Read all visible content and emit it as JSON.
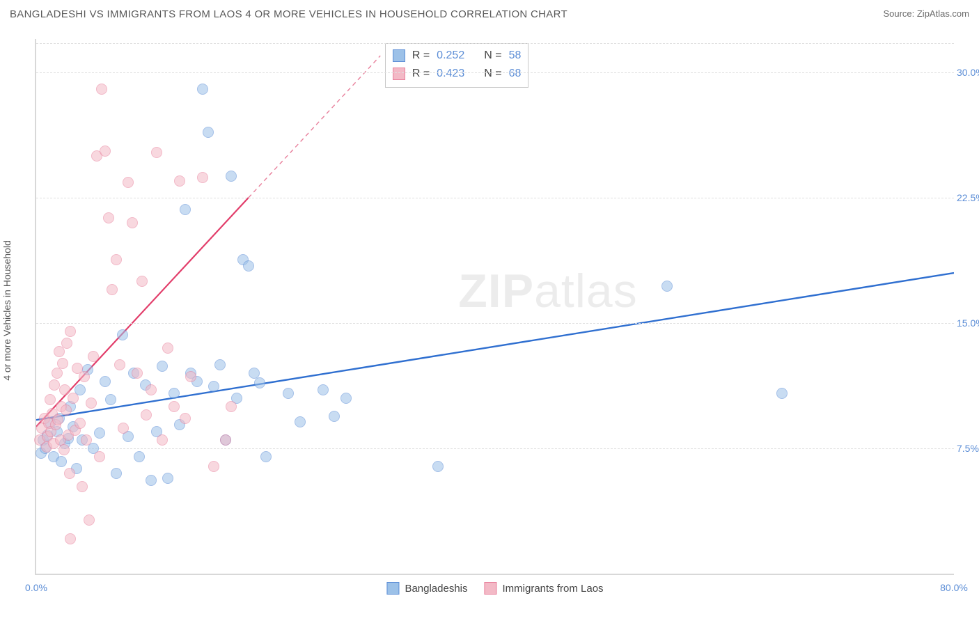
{
  "title": "BANGLADESHI VS IMMIGRANTS FROM LAOS 4 OR MORE VEHICLES IN HOUSEHOLD CORRELATION CHART",
  "source_label": "Source: ",
  "source_name": "ZipAtlas.com",
  "y_axis_label": "4 or more Vehicles in Household",
  "watermark_bold": "ZIP",
  "watermark_rest": "atlas",
  "chart": {
    "type": "scatter",
    "xlim": [
      0,
      80
    ],
    "ylim": [
      0,
      32
    ],
    "x_ticks": [
      0,
      80
    ],
    "x_tick_labels": [
      "0.0%",
      "80.0%"
    ],
    "y_ticks": [
      7.5,
      15.0,
      22.5,
      30.0
    ],
    "y_tick_labels": [
      "7.5%",
      "15.0%",
      "22.5%",
      "30.0%"
    ],
    "background_color": "#ffffff",
    "grid_color": "#e0e0e0",
    "axis_color": "#d8d8d8",
    "tick_label_color": "#5b8dd6",
    "tick_fontsize": 14,
    "title_fontsize": 15,
    "marker_radius": 8,
    "marker_opacity": 0.55,
    "series": [
      {
        "name": "Bangladeshis",
        "color_fill": "#9cc1e8",
        "color_stroke": "#5b8dd6",
        "stat_R": "0.252",
        "stat_N": "58",
        "trend": {
          "x1": 0,
          "y1": 9.2,
          "x2": 80,
          "y2": 18.0,
          "color": "#2f6fd0",
          "width": 2.4,
          "dash": "none"
        },
        "points": [
          [
            0.4,
            7.2
          ],
          [
            0.6,
            8.0
          ],
          [
            0.8,
            7.5
          ],
          [
            1.0,
            8.3
          ],
          [
            1.2,
            9.0
          ],
          [
            1.5,
            7.0
          ],
          [
            1.8,
            8.5
          ],
          [
            2.0,
            9.3
          ],
          [
            2.2,
            6.7
          ],
          [
            2.5,
            7.8
          ],
          [
            2.8,
            8.1
          ],
          [
            3.0,
            10.0
          ],
          [
            3.2,
            8.8
          ],
          [
            3.5,
            6.3
          ],
          [
            3.8,
            11.0
          ],
          [
            4.0,
            8.0
          ],
          [
            4.5,
            12.2
          ],
          [
            5.0,
            7.5
          ],
          [
            5.5,
            8.4
          ],
          [
            6.0,
            11.5
          ],
          [
            6.5,
            10.4
          ],
          [
            7.0,
            6.0
          ],
          [
            7.5,
            14.3
          ],
          [
            8.0,
            8.2
          ],
          [
            8.5,
            12.0
          ],
          [
            9.0,
            7.0
          ],
          [
            9.5,
            11.3
          ],
          [
            10.0,
            5.6
          ],
          [
            10.5,
            8.5
          ],
          [
            11.0,
            12.4
          ],
          [
            11.5,
            5.7
          ],
          [
            12.0,
            10.8
          ],
          [
            12.5,
            8.9
          ],
          [
            13.0,
            21.8
          ],
          [
            13.5,
            12.0
          ],
          [
            14.0,
            11.5
          ],
          [
            14.5,
            29.0
          ],
          [
            15.0,
            26.4
          ],
          [
            15.5,
            11.2
          ],
          [
            16.0,
            12.5
          ],
          [
            16.5,
            8.0
          ],
          [
            17.0,
            23.8
          ],
          [
            17.5,
            10.5
          ],
          [
            18.0,
            18.8
          ],
          [
            18.5,
            18.4
          ],
          [
            19.0,
            12.0
          ],
          [
            19.5,
            11.4
          ],
          [
            20.0,
            7.0
          ],
          [
            22.0,
            10.8
          ],
          [
            23.0,
            9.1
          ],
          [
            25.0,
            11.0
          ],
          [
            26.0,
            9.4
          ],
          [
            27.0,
            10.5
          ],
          [
            35.0,
            6.4
          ],
          [
            55.0,
            17.2
          ],
          [
            65.0,
            10.8
          ]
        ]
      },
      {
        "name": "Immigrants from Laos",
        "color_fill": "#f3b9c6",
        "color_stroke": "#e87f9b",
        "stat_R": "0.423",
        "stat_N": "68",
        "trend": {
          "x1": 0,
          "y1": 8.8,
          "x2": 18.5,
          "y2": 22.5,
          "color": "#e23d6a",
          "width": 2.2,
          "dash": "none"
        },
        "trend_ext": {
          "x1": 18.5,
          "y1": 22.5,
          "x2": 30,
          "y2": 31.0,
          "color": "#e87f9b",
          "width": 1.4,
          "dash": "6 5"
        },
        "points": [
          [
            0.3,
            8.0
          ],
          [
            0.5,
            8.7
          ],
          [
            0.7,
            9.3
          ],
          [
            0.9,
            7.6
          ],
          [
            1.0,
            8.2
          ],
          [
            1.1,
            9.0
          ],
          [
            1.2,
            10.4
          ],
          [
            1.3,
            8.5
          ],
          [
            1.4,
            9.6
          ],
          [
            1.5,
            7.8
          ],
          [
            1.6,
            11.3
          ],
          [
            1.7,
            8.9
          ],
          [
            1.8,
            12.0
          ],
          [
            1.9,
            9.2
          ],
          [
            2.0,
            13.3
          ],
          [
            2.1,
            8.0
          ],
          [
            2.2,
            10.0
          ],
          [
            2.3,
            12.6
          ],
          [
            2.4,
            7.4
          ],
          [
            2.5,
            11.0
          ],
          [
            2.6,
            9.8
          ],
          [
            2.7,
            13.8
          ],
          [
            2.8,
            8.3
          ],
          [
            2.9,
            6.0
          ],
          [
            3.0,
            14.5
          ],
          [
            3.2,
            10.5
          ],
          [
            3.4,
            8.6
          ],
          [
            3.6,
            12.3
          ],
          [
            3.8,
            9.0
          ],
          [
            4.0,
            5.2
          ],
          [
            4.2,
            11.8
          ],
          [
            4.4,
            8.0
          ],
          [
            4.6,
            3.2
          ],
          [
            4.8,
            10.2
          ],
          [
            5.0,
            13.0
          ],
          [
            5.3,
            25.0
          ],
          [
            5.5,
            7.0
          ],
          [
            5.7,
            29.0
          ],
          [
            6.0,
            25.3
          ],
          [
            6.3,
            21.3
          ],
          [
            6.6,
            17.0
          ],
          [
            7.0,
            18.8
          ],
          [
            7.3,
            12.5
          ],
          [
            7.6,
            8.7
          ],
          [
            8.0,
            23.4
          ],
          [
            8.4,
            21.0
          ],
          [
            8.8,
            12.0
          ],
          [
            9.2,
            17.5
          ],
          [
            9.6,
            9.5
          ],
          [
            10.0,
            11.0
          ],
          [
            10.5,
            25.2
          ],
          [
            11.0,
            8.0
          ],
          [
            11.5,
            13.5
          ],
          [
            12.0,
            10.0
          ],
          [
            12.5,
            23.5
          ],
          [
            13.0,
            9.3
          ],
          [
            13.5,
            11.8
          ],
          [
            14.5,
            23.7
          ],
          [
            15.5,
            6.4
          ],
          [
            16.5,
            8.0
          ],
          [
            17.0,
            10.0
          ],
          [
            3.0,
            2.1
          ]
        ]
      }
    ]
  },
  "stat_legend_labels": {
    "R": "R =",
    "N": "N ="
  },
  "series_legend": {
    "items": [
      "Bangladeshis",
      "Immigrants from Laos"
    ]
  }
}
